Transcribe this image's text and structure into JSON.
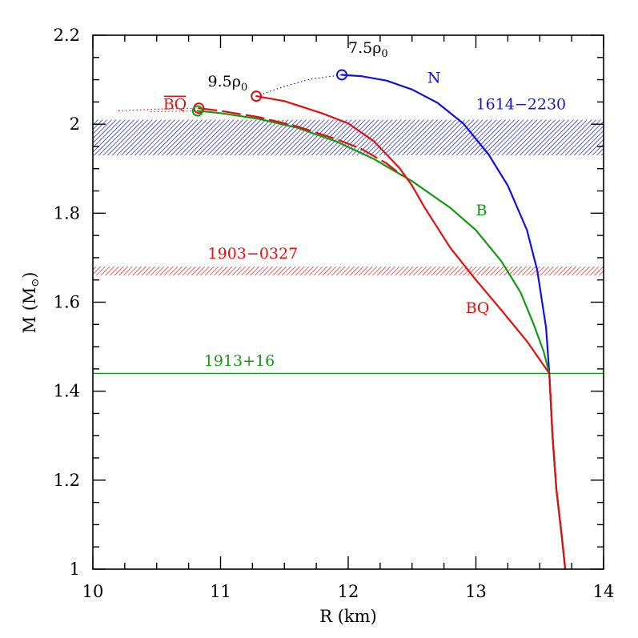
{
  "chart_data": {
    "type": "line",
    "xlabel": "R (km)",
    "ylabel_main": "M (M",
    "ylabel_sub": "⊙",
    "ylabel_close": ")",
    "xlim": [
      10,
      14
    ],
    "ylim": [
      1.0,
      2.2
    ],
    "x_ticks": [
      10,
      11,
      12,
      13,
      14
    ],
    "x_tick_labels": [
      "10",
      "11",
      "12",
      "13",
      "14"
    ],
    "y_ticks": [
      1.0,
      1.2,
      1.4,
      1.6,
      1.8,
      2.0,
      2.2
    ],
    "y_tick_labels": [
      "1",
      "1.2",
      "1.4",
      "1.6",
      "1.8",
      "2",
      "2.2"
    ],
    "bands": [
      {
        "name": "1614-2230",
        "y0": 1.93,
        "y1": 2.01,
        "color": "#1a1ab0"
      },
      {
        "name": "1903-0327",
        "y0": 1.66,
        "y1": 1.68,
        "color": "#e02020"
      }
    ],
    "reference_lines": [
      {
        "name": "1913+16",
        "y": 1.44,
        "color": "#139a13"
      }
    ],
    "series": [
      {
        "name": "N",
        "color": "#1010e0",
        "style": "solid",
        "width": 2.2,
        "points": [
          [
            11.95,
            2.111
          ],
          [
            12.1,
            2.108
          ],
          [
            12.3,
            2.098
          ],
          [
            12.5,
            2.078
          ],
          [
            12.7,
            2.048
          ],
          [
            12.9,
            2.002
          ],
          [
            13.1,
            1.932
          ],
          [
            13.25,
            1.862
          ],
          [
            13.4,
            1.762
          ],
          [
            13.48,
            1.672
          ],
          [
            13.55,
            1.542
          ],
          [
            13.575,
            1.44
          ],
          [
            13.6,
            1.3
          ],
          [
            13.63,
            1.18
          ],
          [
            13.67,
            1.08
          ],
          [
            13.7,
            1.0
          ]
        ]
      },
      {
        "name": "N (unstable)",
        "color": "#1010e0",
        "style": "dotted",
        "width": 1.2,
        "points": [
          [
            11.28,
            2.063
          ],
          [
            11.5,
            2.085
          ],
          [
            11.7,
            2.101
          ],
          [
            11.95,
            2.111
          ]
        ]
      },
      {
        "name": "B",
        "color": "#139a13",
        "style": "solid",
        "width": 2.2,
        "points": [
          [
            10.82,
            2.03
          ],
          [
            11.0,
            2.025
          ],
          [
            11.3,
            2.012
          ],
          [
            11.6,
            1.992
          ],
          [
            11.9,
            1.962
          ],
          [
            12.2,
            1.922
          ],
          [
            12.5,
            1.872
          ],
          [
            12.8,
            1.812
          ],
          [
            13.0,
            1.762
          ],
          [
            13.2,
            1.692
          ],
          [
            13.35,
            1.622
          ],
          [
            13.45,
            1.552
          ],
          [
            13.53,
            1.49
          ],
          [
            13.575,
            1.44
          ],
          [
            13.6,
            1.3
          ],
          [
            13.63,
            1.18
          ],
          [
            13.67,
            1.08
          ],
          [
            13.7,
            1.0
          ]
        ]
      },
      {
        "name": "BQ",
        "color": "#e01010",
        "style": "solid",
        "width": 2.2,
        "points": [
          [
            11.28,
            2.063
          ],
          [
            11.5,
            2.052
          ],
          [
            11.8,
            2.024
          ],
          [
            12.0,
            2.002
          ],
          [
            12.2,
            1.962
          ],
          [
            12.4,
            1.902
          ],
          [
            12.5,
            1.862
          ],
          [
            12.6,
            1.812
          ],
          [
            12.8,
            1.722
          ],
          [
            13.0,
            1.65
          ],
          [
            13.2,
            1.582
          ],
          [
            13.4,
            1.512
          ],
          [
            13.575,
            1.44
          ],
          [
            13.6,
            1.3
          ],
          [
            13.63,
            1.18
          ],
          [
            13.67,
            1.08
          ],
          [
            13.7,
            1.0
          ]
        ]
      },
      {
        "name": "BQ bar",
        "color": "#e01010",
        "style": "dashed",
        "width": 2.2,
        "points": [
          [
            10.83,
            2.036
          ],
          [
            11.0,
            2.03
          ],
          [
            11.3,
            2.016
          ],
          [
            11.6,
            1.995
          ],
          [
            11.9,
            1.967
          ],
          [
            12.1,
            1.945
          ],
          [
            12.3,
            1.912
          ],
          [
            12.42,
            1.885
          ]
        ]
      },
      {
        "name": "BQ (unstable)",
        "color": "#e01010",
        "style": "dotted",
        "width": 1.2,
        "points": [
          [
            10.2,
            2.03
          ],
          [
            10.5,
            2.034
          ],
          [
            10.83,
            2.036
          ]
        ]
      },
      {
        "name": "B (unstable)",
        "color": "#139a13",
        "style": "dotted",
        "width": 1.2,
        "points": [
          [
            10.45,
            2.028
          ],
          [
            10.82,
            2.03
          ]
        ]
      }
    ],
    "max_markers": [
      {
        "x": 11.95,
        "y": 2.111,
        "color": "#1010e0"
      },
      {
        "x": 11.28,
        "y": 2.063,
        "color": "#e01010"
      },
      {
        "x": 10.83,
        "y": 2.036,
        "color": "#e01010"
      },
      {
        "x": 10.82,
        "y": 2.03,
        "color": "#139a13"
      }
    ],
    "annotations": [
      {
        "text": "7.5ρ",
        "sub": "0",
        "x": 12.0,
        "y": 2.16,
        "color": "#000000"
      },
      {
        "text": "9.5ρ",
        "sub": "0",
        "x": 10.9,
        "y": 2.085,
        "color": "#000000"
      },
      {
        "text": "N",
        "x": 12.62,
        "y": 2.093,
        "color": "#1010e0"
      },
      {
        "text": "BQ",
        "x": 10.55,
        "y": 2.034,
        "color": "#e01010",
        "overline": true
      },
      {
        "text": "1614−2230",
        "x": 13.0,
        "y": 2.034,
        "color": "#1a1ab0"
      },
      {
        "text": "B",
        "x": 13.0,
        "y": 1.795,
        "color": "#139a13"
      },
      {
        "text": "1903−0327",
        "x": 10.9,
        "y": 1.698,
        "color": "#e01010"
      },
      {
        "text": "BQ",
        "x": 12.92,
        "y": 1.576,
        "color": "#e01010"
      },
      {
        "text": "1913+16",
        "x": 10.87,
        "y": 1.457,
        "color": "#139a13"
      }
    ]
  }
}
